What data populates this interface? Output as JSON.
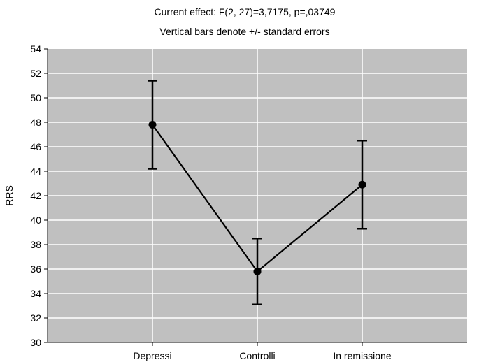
{
  "chart_data": {
    "type": "line",
    "title": "Current effect: F(2, 27)=3,7175, p=,03749",
    "subtitle": "Vertical bars denote +/- standard errors",
    "xlabel": "",
    "ylabel": "RRS",
    "categories": [
      "Depressi",
      "Controlli",
      "In remissione"
    ],
    "series": [
      {
        "values": [
          47.8,
          35.8,
          42.9
        ],
        "error_low": [
          44.2,
          33.1,
          39.3
        ],
        "error_high": [
          51.4,
          38.5,
          46.5
        ]
      }
    ],
    "ylim": [
      30,
      54
    ],
    "yticks": [
      30,
      32,
      34,
      36,
      38,
      40,
      42,
      44,
      46,
      48,
      50,
      52,
      54
    ],
    "grid": true,
    "legend": "none",
    "colors": {
      "plot_background": "#c0c0c0",
      "grid": "#ffffff",
      "line": "#000000",
      "marker": "#000000",
      "error_bar": "#000000"
    }
  }
}
